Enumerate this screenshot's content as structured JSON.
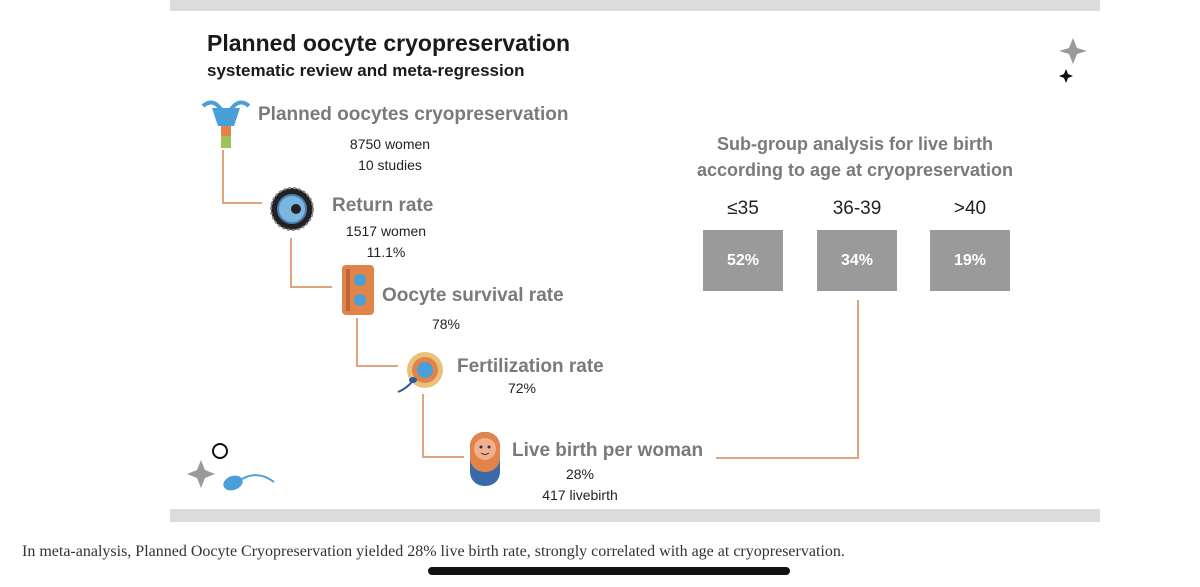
{
  "title": "Planned oocyte cryopreservation",
  "subtitle": "systematic review and meta-regression",
  "steps": [
    {
      "title": "Planned oocytes cryopreservation",
      "line1": "8750 women",
      "line2": "10 studies",
      "icon": "uterus-icon"
    },
    {
      "title": "Return rate",
      "line1": "1517 women",
      "line2": "11.1%",
      "icon": "oocyte-icon"
    },
    {
      "title": "Oocyte survival rate",
      "line1": "78%",
      "icon": "cryo-straw-icon"
    },
    {
      "title": "Fertilization rate",
      "line1": "72%",
      "icon": "fertilization-icon"
    },
    {
      "title": "Live birth per woman",
      "line1": "28%",
      "line2": "417 livebirth",
      "icon": "baby-icon"
    }
  ],
  "subgroup": {
    "heading_line1": "Sub-group analysis for live birth",
    "heading_line2": "according to age at cryopreservation",
    "groups": [
      {
        "label": "≤35",
        "value": "52%"
      },
      {
        "label": "36-39",
        "value": "34%"
      },
      {
        "label": ">40",
        "value": "19%"
      }
    ]
  },
  "caption": "In meta-analysis, Planned Oocyte Cryopreservation yielded 28% live birth rate, strongly correlated with age at cryopreservation.",
  "colors": {
    "connector": "#e0a47e",
    "box": "#9a9a9a",
    "heading": "#7a7a7a",
    "band": "#dcdcdc"
  }
}
